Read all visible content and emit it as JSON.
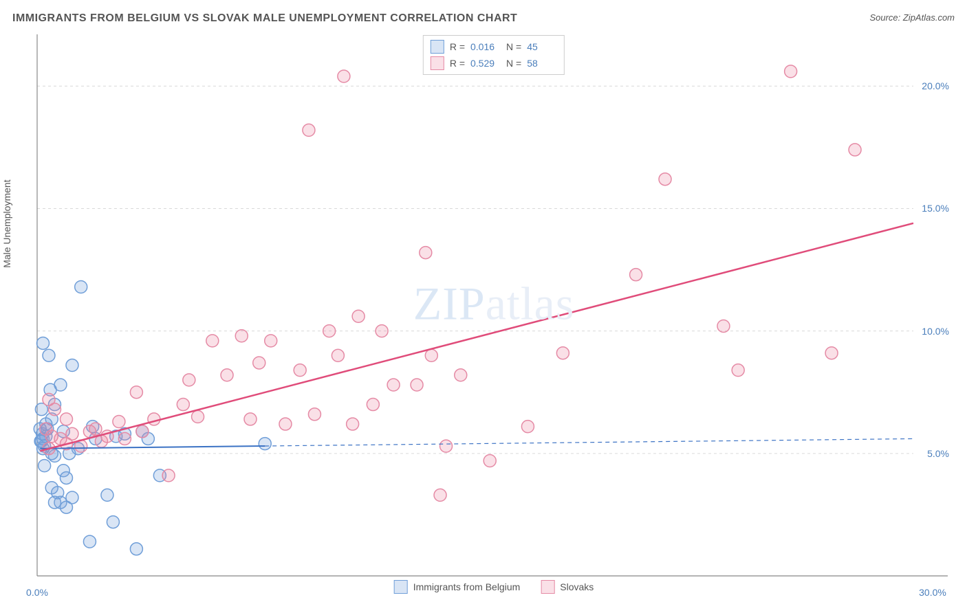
{
  "title": "IMMIGRANTS FROM BELGIUM VS SLOVAK MALE UNEMPLOYMENT CORRELATION CHART",
  "source": "Source: ZipAtlas.com",
  "ylabel": "Male Unemployment",
  "watermark_a": "ZIP",
  "watermark_b": "atlas",
  "chart": {
    "type": "scatter",
    "xlim": [
      0,
      30
    ],
    "ylim": [
      0,
      22
    ],
    "yticks": [
      5.0,
      10.0,
      15.0,
      20.0
    ],
    "ytick_labels": [
      "5.0%",
      "10.0%",
      "15.0%",
      "20.0%"
    ],
    "xticks": [
      0.0,
      30.0
    ],
    "xtick_labels": [
      "0.0%",
      "30.0%"
    ],
    "grid_color": "#d9d9d9",
    "grid_dash": "4,4",
    "axis_color": "#888888",
    "background_color": "#ffffff",
    "marker_radius": 9,
    "marker_stroke_width": 1.5,
    "series": [
      {
        "name": "Immigrants from Belgium",
        "fill": "rgba(120,160,220,0.28)",
        "stroke": "#6f9ed8",
        "r_value": "0.016",
        "n_value": "45",
        "trend": {
          "x1": 0.1,
          "y1": 5.2,
          "x2": 30,
          "y2": 5.6,
          "solid_until_x": 7.8,
          "color": "#3b72c4",
          "width": 2
        },
        "points": [
          [
            0.15,
            5.5
          ],
          [
            0.2,
            5.6
          ],
          [
            0.25,
            5.3
          ],
          [
            0.3,
            5.7
          ],
          [
            0.2,
            5.2
          ],
          [
            0.12,
            5.5
          ],
          [
            0.35,
            6.0
          ],
          [
            0.18,
            5.8
          ],
          [
            0.3,
            6.2
          ],
          [
            0.1,
            6.0
          ],
          [
            0.5,
            6.4
          ],
          [
            0.15,
            6.8
          ],
          [
            0.6,
            7.0
          ],
          [
            0.8,
            7.8
          ],
          [
            0.45,
            7.6
          ],
          [
            1.2,
            8.6
          ],
          [
            0.2,
            9.5
          ],
          [
            1.5,
            11.8
          ],
          [
            0.4,
            9.0
          ],
          [
            0.6,
            4.9
          ],
          [
            0.25,
            4.5
          ],
          [
            0.9,
            4.3
          ],
          [
            1.0,
            4.0
          ],
          [
            0.5,
            3.6
          ],
          [
            0.7,
            3.4
          ],
          [
            1.2,
            3.2
          ],
          [
            0.8,
            3.0
          ],
          [
            0.6,
            3.0
          ],
          [
            1.0,
            2.8
          ],
          [
            2.4,
            3.3
          ],
          [
            2.6,
            2.2
          ],
          [
            1.8,
            1.4
          ],
          [
            3.4,
            1.1
          ],
          [
            2.0,
            5.6
          ],
          [
            2.7,
            5.7
          ],
          [
            3.0,
            5.8
          ],
          [
            3.8,
            5.6
          ],
          [
            4.2,
            4.1
          ],
          [
            1.9,
            6.1
          ],
          [
            3.6,
            5.9
          ],
          [
            1.4,
            5.2
          ],
          [
            0.9,
            5.9
          ],
          [
            7.8,
            5.4
          ],
          [
            1.1,
            5.0
          ],
          [
            0.5,
            5.0
          ]
        ]
      },
      {
        "name": "Slovaks",
        "fill": "rgba(235,130,160,0.25)",
        "stroke": "#e58aa5",
        "r_value": "0.529",
        "n_value": "58",
        "trend": {
          "x1": 0.1,
          "y1": 5.1,
          "x2": 30,
          "y2": 14.4,
          "solid_until_x": 30,
          "color": "#e04c7a",
          "width": 2.5
        },
        "points": [
          [
            0.3,
            6.0
          ],
          [
            0.5,
            5.7
          ],
          [
            0.8,
            5.6
          ],
          [
            1.0,
            5.4
          ],
          [
            1.2,
            5.8
          ],
          [
            1.5,
            5.3
          ],
          [
            0.6,
            6.8
          ],
          [
            0.4,
            7.2
          ],
          [
            1.8,
            5.9
          ],
          [
            2.0,
            6.0
          ],
          [
            2.4,
            5.7
          ],
          [
            2.8,
            6.3
          ],
          [
            3.0,
            5.6
          ],
          [
            3.4,
            7.5
          ],
          [
            3.6,
            5.9
          ],
          [
            4.0,
            6.4
          ],
          [
            4.5,
            4.1
          ],
          [
            5.0,
            7.0
          ],
          [
            5.2,
            8.0
          ],
          [
            5.5,
            6.5
          ],
          [
            6.0,
            9.6
          ],
          [
            6.5,
            8.2
          ],
          [
            7.0,
            9.8
          ],
          [
            7.3,
            6.4
          ],
          [
            7.6,
            8.7
          ],
          [
            8.0,
            9.6
          ],
          [
            8.5,
            6.2
          ],
          [
            9.0,
            8.4
          ],
          [
            9.3,
            18.2
          ],
          [
            9.5,
            6.6
          ],
          [
            10.0,
            10.0
          ],
          [
            10.3,
            9.0
          ],
          [
            10.5,
            20.4
          ],
          [
            10.8,
            6.2
          ],
          [
            11.0,
            10.6
          ],
          [
            11.5,
            7.0
          ],
          [
            11.8,
            10.0
          ],
          [
            12.2,
            7.8
          ],
          [
            13.0,
            7.8
          ],
          [
            13.3,
            13.2
          ],
          [
            13.5,
            9.0
          ],
          [
            14.0,
            5.3
          ],
          [
            13.8,
            3.3
          ],
          [
            14.5,
            8.2
          ],
          [
            15.2,
            21.0
          ],
          [
            15.5,
            4.7
          ],
          [
            16.8,
            6.1
          ],
          [
            18.0,
            9.1
          ],
          [
            20.5,
            12.3
          ],
          [
            21.5,
            16.2
          ],
          [
            23.5,
            10.2
          ],
          [
            24.0,
            8.4
          ],
          [
            25.8,
            20.6
          ],
          [
            27.2,
            9.1
          ],
          [
            28.0,
            17.4
          ],
          [
            0.4,
            5.2
          ],
          [
            1.0,
            6.4
          ],
          [
            2.2,
            5.5
          ]
        ]
      }
    ]
  },
  "legend_top": {
    "r_label": "R =",
    "n_label": "N ="
  },
  "legend_bottom": {
    "series1": "Immigrants from Belgium",
    "series2": "Slovaks"
  }
}
